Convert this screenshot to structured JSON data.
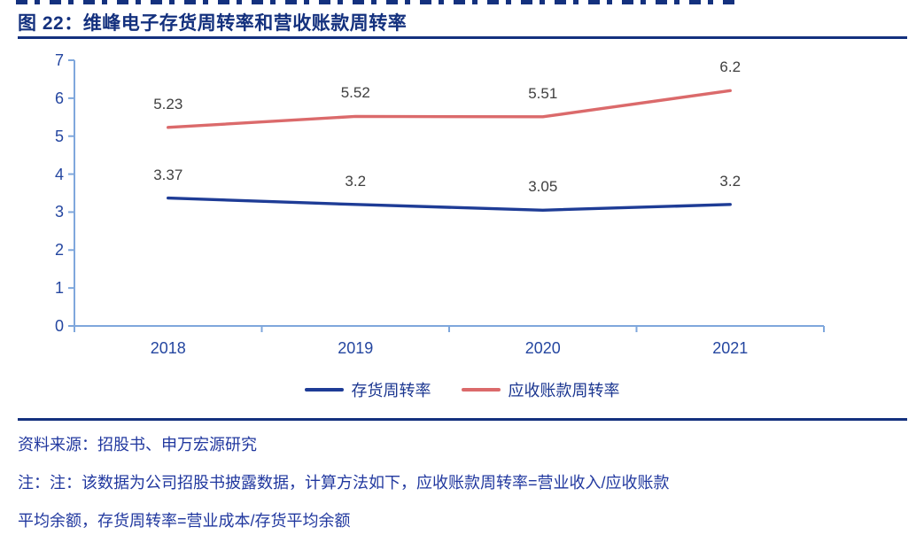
{
  "figure": {
    "title": "图 22：维峰电子存货周转率和营收账款周转率",
    "source": "资料来源：招股书、申万宏源研究",
    "note_line1": "注：注：该数据为公司招股书披露数据，计算方法如下，应收账款周转率=营业收入/应收账款",
    "note_line2": "平均余额，存货周转率=营业成本/存货平均余额"
  },
  "colors": {
    "title_navy": "#14317E",
    "axis_line": "#7FA7DC",
    "tick_label_blue": "#2446A0",
    "body_text_blue": "#21389F",
    "data_label_gray": "#404040",
    "series_inventory_blue": "#1E3C96",
    "series_receivable_red": "#DB6A6B"
  },
  "chart_data": {
    "type": "line",
    "title": "维峰电子存货周转率和营收账款周转率",
    "categories": [
      "2018",
      "2019",
      "2020",
      "2021"
    ],
    "series": [
      {
        "name": "存货周转率",
        "color": "#1E3C96",
        "values": [
          3.37,
          3.2,
          3.05,
          3.2
        ]
      },
      {
        "name": "应收账款周转率",
        "color": "#DB6A6B",
        "values": [
          5.23,
          5.52,
          5.51,
          6.2
        ]
      }
    ],
    "xlabel": "",
    "ylabel": "",
    "ylim": [
      0,
      7
    ],
    "yticks": [
      0,
      1,
      2,
      3,
      4,
      5,
      6,
      7
    ],
    "grid": false,
    "data_labels": true,
    "legend_position": "bottom"
  }
}
